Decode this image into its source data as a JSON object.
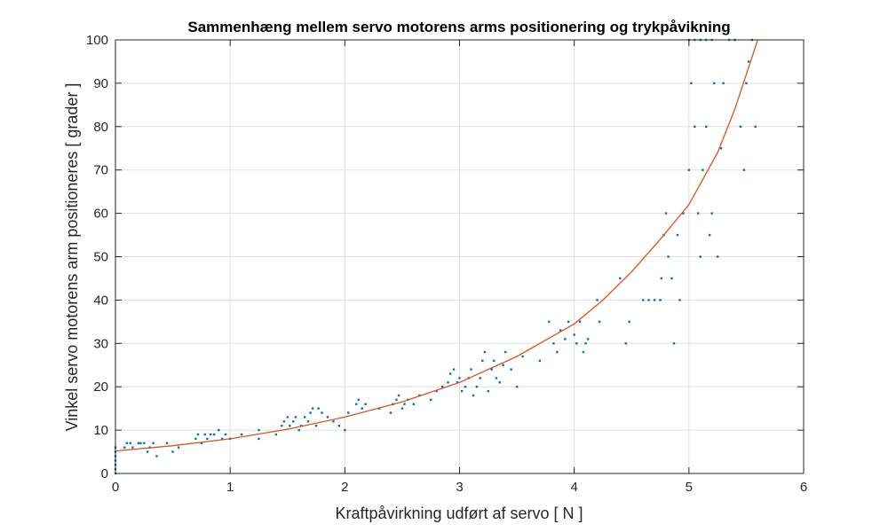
{
  "chart_data": {
    "type": "scatter",
    "title": "Sammenhæng mellem servo motorens arms positionering og trykpåvikning",
    "xlabel": "Kraftpåvirkning udført af servo [ N ]",
    "ylabel": "Vinkel servo motorens arm positioneres [ grader ]",
    "xlim": [
      0,
      6
    ],
    "ylim": [
      0,
      100
    ],
    "x_ticks": [
      "0",
      "1",
      "2",
      "3",
      "4",
      "5",
      "6"
    ],
    "y_ticks": [
      "0",
      "10",
      "20",
      "30",
      "40",
      "50",
      "60",
      "70",
      "80",
      "90",
      "100"
    ],
    "grid": true,
    "legend": "none",
    "colors": {
      "points": "#0072BD",
      "fit": "#D95319",
      "grid": "#dfdfdf",
      "axis": "#262626"
    },
    "series": [
      {
        "kind": "points",
        "points": [
          [
            0,
            0
          ],
          [
            0,
            1
          ],
          [
            0,
            2
          ],
          [
            0,
            3
          ],
          [
            0,
            4
          ],
          [
            0,
            5
          ],
          [
            0,
            6
          ],
          [
            0.08,
            6
          ],
          [
            0.1,
            7
          ],
          [
            0.13,
            7
          ],
          [
            0.15,
            6
          ],
          [
            0.2,
            7
          ],
          [
            0.22,
            7
          ],
          [
            0.25,
            7
          ],
          [
            0.28,
            5
          ],
          [
            0.3,
            6
          ],
          [
            0.33,
            7
          ],
          [
            0.36,
            4
          ],
          [
            0.45,
            7
          ],
          [
            0.5,
            5
          ],
          [
            0.55,
            6
          ],
          [
            0.7,
            8
          ],
          [
            0.72,
            9
          ],
          [
            0.75,
            7
          ],
          [
            0.78,
            9
          ],
          [
            0.8,
            8
          ],
          [
            0.83,
            9
          ],
          [
            0.86,
            9
          ],
          [
            0.9,
            10
          ],
          [
            0.93,
            8
          ],
          [
            0.96,
            9
          ],
          [
            1.0,
            8
          ],
          [
            1.1,
            9
          ],
          [
            1.25,
            8
          ],
          [
            1.25,
            10
          ],
          [
            1.4,
            9
          ],
          [
            1.45,
            11
          ],
          [
            1.47,
            12
          ],
          [
            1.5,
            13
          ],
          [
            1.52,
            11
          ],
          [
            1.55,
            12
          ],
          [
            1.57,
            13
          ],
          [
            1.6,
            10
          ],
          [
            1.62,
            11
          ],
          [
            1.65,
            13
          ],
          [
            1.68,
            12
          ],
          [
            1.7,
            14
          ],
          [
            1.72,
            15
          ],
          [
            1.75,
            11
          ],
          [
            1.77,
            15
          ],
          [
            1.8,
            14
          ],
          [
            1.85,
            13
          ],
          [
            1.9,
            12
          ],
          [
            1.95,
            11
          ],
          [
            2.0,
            10
          ],
          [
            2.03,
            14
          ],
          [
            2.1,
            16
          ],
          [
            2.12,
            17
          ],
          [
            2.15,
            15
          ],
          [
            2.18,
            16
          ],
          [
            2.3,
            15
          ],
          [
            2.4,
            14
          ],
          [
            2.42,
            16
          ],
          [
            2.45,
            17
          ],
          [
            2.47,
            18
          ],
          [
            2.5,
            15
          ],
          [
            2.52,
            16
          ],
          [
            2.55,
            17
          ],
          [
            2.6,
            16
          ],
          [
            2.65,
            18
          ],
          [
            2.75,
            17
          ],
          [
            2.8,
            19
          ],
          [
            2.85,
            20
          ],
          [
            2.9,
            21
          ],
          [
            2.92,
            23
          ],
          [
            2.95,
            24
          ],
          [
            2.98,
            21
          ],
          [
            3.0,
            22
          ],
          [
            3.02,
            19
          ],
          [
            3.05,
            20
          ],
          [
            3.08,
            22
          ],
          [
            3.1,
            24
          ],
          [
            3.12,
            18
          ],
          [
            3.15,
            20
          ],
          [
            3.18,
            22
          ],
          [
            3.2,
            26
          ],
          [
            3.22,
            28
          ],
          [
            3.25,
            19
          ],
          [
            3.28,
            24
          ],
          [
            3.3,
            26
          ],
          [
            3.32,
            22
          ],
          [
            3.35,
            21
          ],
          [
            3.38,
            25
          ],
          [
            3.4,
            28
          ],
          [
            3.45,
            24
          ],
          [
            3.5,
            20
          ],
          [
            3.55,
            27
          ],
          [
            3.7,
            26
          ],
          [
            3.78,
            35
          ],
          [
            3.82,
            30
          ],
          [
            3.85,
            28
          ],
          [
            3.88,
            33
          ],
          [
            3.92,
            31
          ],
          [
            3.95,
            35
          ],
          [
            4.0,
            32
          ],
          [
            4.02,
            30
          ],
          [
            4.05,
            35
          ],
          [
            4.08,
            28
          ],
          [
            4.1,
            30
          ],
          [
            4.12,
            31
          ],
          [
            4.2,
            40
          ],
          [
            4.22,
            35
          ],
          [
            4.4,
            45
          ],
          [
            4.45,
            30
          ],
          [
            4.48,
            35
          ],
          [
            4.6,
            40
          ],
          [
            4.65,
            40
          ],
          [
            4.7,
            40
          ],
          [
            4.75,
            40
          ],
          [
            4.76,
            45
          ],
          [
            4.78,
            55
          ],
          [
            4.8,
            60
          ],
          [
            4.82,
            50
          ],
          [
            4.85,
            45
          ],
          [
            4.87,
            30
          ],
          [
            4.9,
            55
          ],
          [
            4.92,
            40
          ],
          [
            4.95,
            60
          ],
          [
            5.0,
            70
          ],
          [
            5.02,
            90
          ],
          [
            5.05,
            80
          ],
          [
            5.08,
            60
          ],
          [
            5.1,
            50
          ],
          [
            5.12,
            70
          ],
          [
            5.15,
            80
          ],
          [
            5.18,
            55
          ],
          [
            5.2,
            60
          ],
          [
            5.22,
            90
          ],
          [
            5.25,
            50
          ],
          [
            5.28,
            75
          ],
          [
            5.3,
            90
          ],
          [
            5.35,
            100
          ],
          [
            5.4,
            100
          ],
          [
            5.45,
            80
          ],
          [
            5.48,
            70
          ],
          [
            5.5,
            90
          ],
          [
            5.52,
            95
          ],
          [
            5.55,
            100
          ],
          [
            5.58,
            80
          ],
          [
            5.0,
            100
          ],
          [
            5.05,
            100
          ],
          [
            5.1,
            100
          ],
          [
            5.15,
            100
          ],
          [
            5.2,
            100
          ]
        ]
      },
      {
        "kind": "fit-line",
        "points": [
          [
            0,
            5.2
          ],
          [
            0.5,
            6.4
          ],
          [
            1,
            8.0
          ],
          [
            1.5,
            10.2
          ],
          [
            2,
            13.0
          ],
          [
            2.5,
            16.5
          ],
          [
            3,
            21.0
          ],
          [
            3.5,
            27.0
          ],
          [
            4,
            34.5
          ],
          [
            4.25,
            40.0
          ],
          [
            4.5,
            46.5
          ],
          [
            4.75,
            54.0
          ],
          [
            5,
            62.0
          ],
          [
            5.25,
            74.0
          ],
          [
            5.4,
            84.0
          ],
          [
            5.5,
            92.0
          ],
          [
            5.6,
            100.0
          ]
        ]
      }
    ]
  }
}
